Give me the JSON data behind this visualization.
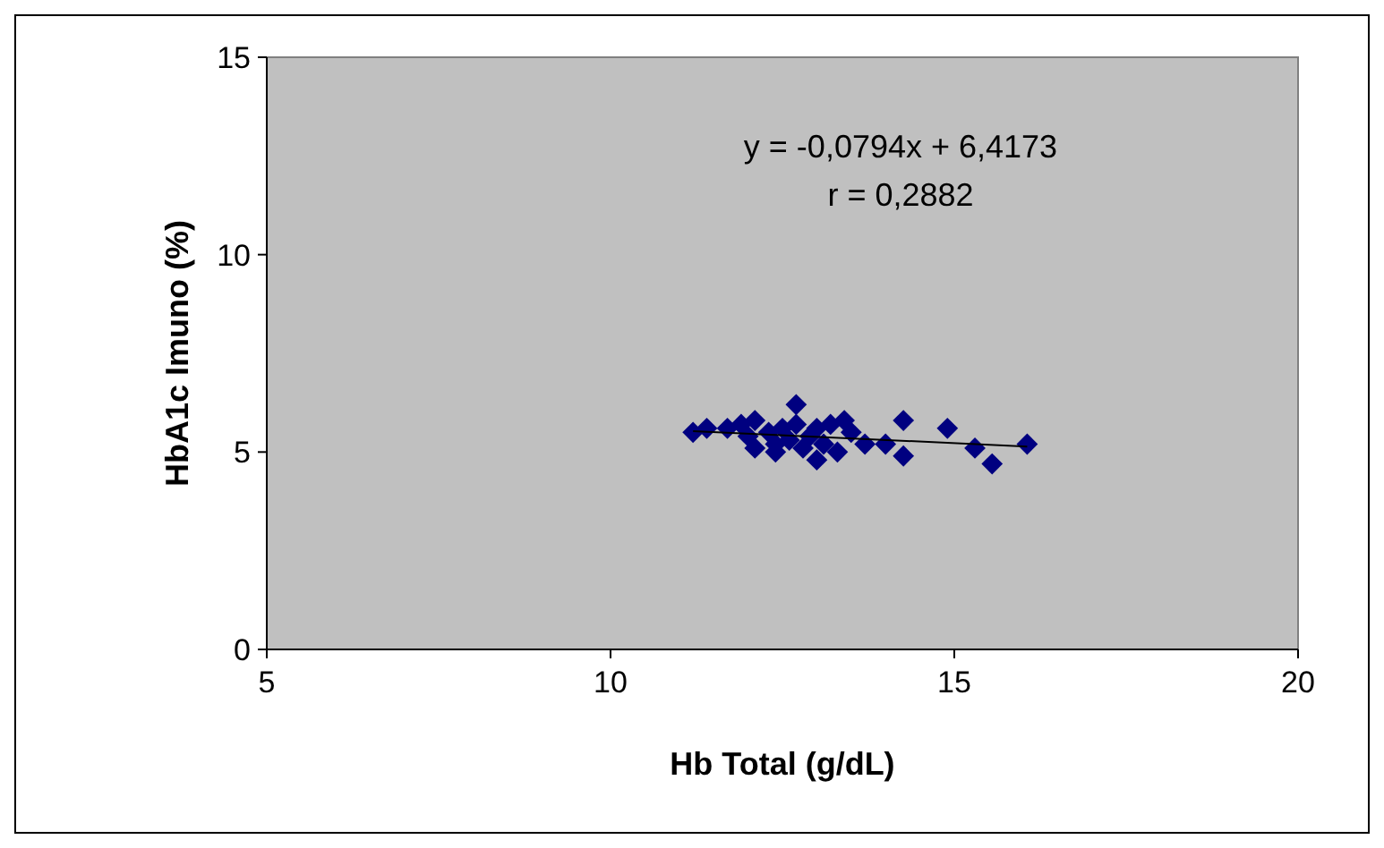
{
  "chart_data": {
    "type": "scatter",
    "xlabel": "Hb Total (g/dL)",
    "ylabel": "HbA1c Imuno (%)",
    "xlim": [
      5,
      20
    ],
    "ylim": [
      0,
      15
    ],
    "xticks": [
      5,
      10,
      15,
      20
    ],
    "yticks": [
      0,
      5,
      10,
      15
    ],
    "grid": false,
    "annotations": [
      "y = -0,0794x + 6,4173",
      "r = 0,2882"
    ],
    "series": [
      {
        "marker": "diamond",
        "color": "#000080",
        "x": [
          11.2,
          11.4,
          11.7,
          11.9,
          12.0,
          12.1,
          12.1,
          12.3,
          12.4,
          12.4,
          12.5,
          12.6,
          12.7,
          12.8,
          12.7,
          12.9,
          13.0,
          13.0,
          13.1,
          13.2,
          13.3,
          13.4,
          13.5,
          13.7,
          14.0,
          14.26,
          14.26,
          14.9,
          15.3,
          15.55,
          16.06
        ],
        "values": [
          5.5,
          5.6,
          5.6,
          5.7,
          5.4,
          5.1,
          5.8,
          5.5,
          5.2,
          5.0,
          5.6,
          5.3,
          5.7,
          5.1,
          6.2,
          5.4,
          5.6,
          4.8,
          5.2,
          5.7,
          5.0,
          5.8,
          5.5,
          5.2,
          5.2,
          5.8,
          4.9,
          5.6,
          5.1,
          4.7,
          5.2
        ]
      },
      {
        "type": "line",
        "color": "#000000",
        "x": [
          11.2,
          16.06
        ],
        "values": [
          5.53,
          5.14
        ]
      }
    ]
  }
}
